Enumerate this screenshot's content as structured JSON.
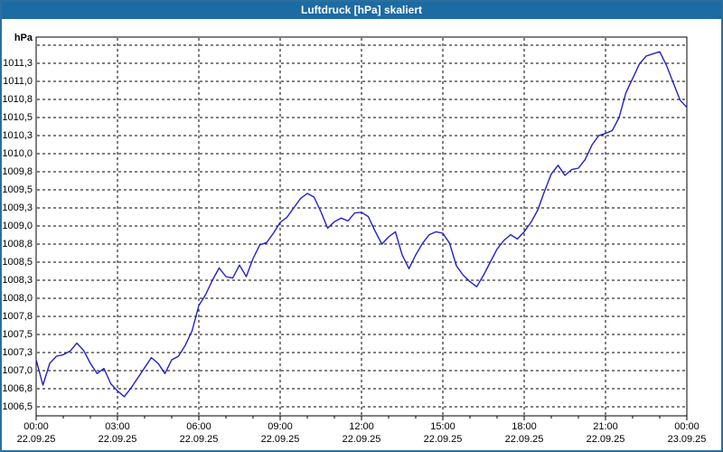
{
  "window": {
    "title": "Luftdruck [hPa] skaliert"
  },
  "colors": {
    "titlebar_bg": "#1c6ba3",
    "window_border": "#2b6f9f",
    "plot_background": "#ffffff",
    "grid": "#000000",
    "label_text": "#000000",
    "line": "#2121c7"
  },
  "chart_data": {
    "type": "line",
    "title": "Luftdruck [hPa] skaliert",
    "xlabel": "",
    "ylabel": "hPa",
    "unit": "hPa",
    "grid": true,
    "legend_position": "none",
    "ylim": [
      1006.4,
      1011.6
    ],
    "xlim_hours": [
      0,
      24
    ],
    "x_start_hour": 0,
    "x_step_hours": 0.25,
    "y_ticks": [
      {
        "v": 1011.5,
        "label": ""
      },
      {
        "v": 1011.25,
        "label": "1011,3"
      },
      {
        "v": 1011.0,
        "label": "1011,0"
      },
      {
        "v": 1010.75,
        "label": "1010,8"
      },
      {
        "v": 1010.5,
        "label": "1010,5"
      },
      {
        "v": 1010.25,
        "label": "1010,3"
      },
      {
        "v": 1010.0,
        "label": "1010,0"
      },
      {
        "v": 1009.75,
        "label": "1009,8"
      },
      {
        "v": 1009.5,
        "label": "1009,5"
      },
      {
        "v": 1009.25,
        "label": "1009,3"
      },
      {
        "v": 1009.0,
        "label": "1009,0"
      },
      {
        "v": 1008.75,
        "label": "1008,8"
      },
      {
        "v": 1008.5,
        "label": "1008,5"
      },
      {
        "v": 1008.25,
        "label": "1008,3"
      },
      {
        "v": 1008.0,
        "label": "1008,0"
      },
      {
        "v": 1007.75,
        "label": "1007,8"
      },
      {
        "v": 1007.5,
        "label": "1007,5"
      },
      {
        "v": 1007.25,
        "label": "1007,3"
      },
      {
        "v": 1007.0,
        "label": "1007,0"
      },
      {
        "v": 1006.75,
        "label": "1006,8"
      },
      {
        "v": 1006.5,
        "label": "1006,5"
      }
    ],
    "x_ticks": [
      {
        "time": "00:00",
        "date": "22.09.25"
      },
      {
        "time": "03:00",
        "date": "22.09.25"
      },
      {
        "time": "06:00",
        "date": "22.09.25"
      },
      {
        "time": "09:00",
        "date": "22.09.25"
      },
      {
        "time": "12:00",
        "date": "22.09.25"
      },
      {
        "time": "15:00",
        "date": "22.09.25"
      },
      {
        "time": "18:00",
        "date": "22.09.25"
      },
      {
        "time": "21:00",
        "date": "22.09.25"
      },
      {
        "time": "00:00",
        "date": "23.09.25"
      }
    ],
    "x_minor_tick_hours": 1,
    "series": [
      {
        "name": "Luftdruck",
        "color": "#2121c7",
        "values": [
          1007.15,
          1006.8,
          1007.1,
          1007.2,
          1007.22,
          1007.27,
          1007.38,
          1007.28,
          1007.1,
          1006.96,
          1007.03,
          1006.82,
          1006.72,
          1006.64,
          1006.76,
          1006.9,
          1007.04,
          1007.18,
          1007.1,
          1006.96,
          1007.15,
          1007.2,
          1007.35,
          1007.55,
          1007.9,
          1008.05,
          1008.25,
          1008.42,
          1008.3,
          1008.28,
          1008.46,
          1008.3,
          1008.55,
          1008.74,
          1008.77,
          1008.9,
          1009.05,
          1009.12,
          1009.25,
          1009.38,
          1009.45,
          1009.4,
          1009.2,
          1008.97,
          1009.06,
          1009.11,
          1009.07,
          1009.18,
          1009.19,
          1009.13,
          1008.93,
          1008.75,
          1008.85,
          1008.92,
          1008.6,
          1008.41,
          1008.6,
          1008.76,
          1008.88,
          1008.92,
          1008.9,
          1008.76,
          1008.45,
          1008.32,
          1008.23,
          1008.16,
          1008.32,
          1008.5,
          1008.68,
          1008.8,
          1008.88,
          1008.82,
          1008.92,
          1009.05,
          1009.22,
          1009.48,
          1009.72,
          1009.84,
          1009.7,
          1009.78,
          1009.8,
          1009.92,
          1010.12,
          1010.25,
          1010.28,
          1010.32,
          1010.5,
          1010.84,
          1011.04,
          1011.24,
          1011.35,
          1011.38,
          1011.41,
          1011.22,
          1010.98,
          1010.74,
          1010.64
        ]
      }
    ]
  }
}
